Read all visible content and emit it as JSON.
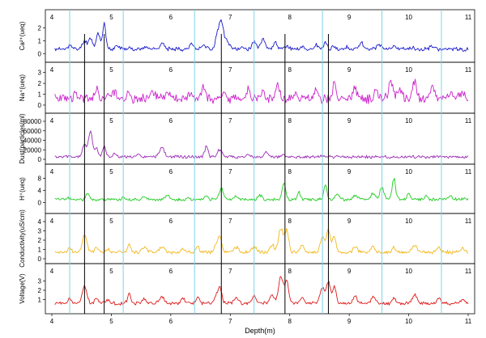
{
  "chart_data": [
    {
      "type": "line",
      "ylabel": "Ca²⁺(ueq)",
      "color": "#1a1acc",
      "ylim": [
        -0.3,
        2.8
      ],
      "yticks": [
        0,
        1,
        2
      ],
      "baseline": 0.35,
      "peaks": [
        [
          4.3,
          0.7
        ],
        [
          4.55,
          1.0
        ],
        [
          4.65,
          1.2
        ],
        [
          4.78,
          1.6
        ],
        [
          4.88,
          2.3
        ],
        [
          5.1,
          0.6
        ],
        [
          5.3,
          0.5
        ],
        [
          5.6,
          0.6
        ],
        [
          5.85,
          0.8
        ],
        [
          6.1,
          0.4
        ],
        [
          6.35,
          0.8
        ],
        [
          6.55,
          0.7
        ],
        [
          6.78,
          1.3
        ],
        [
          6.85,
          2.5
        ],
        [
          6.95,
          0.9
        ],
        [
          7.2,
          0.5
        ],
        [
          7.4,
          0.9
        ],
        [
          7.55,
          1.2
        ],
        [
          7.75,
          0.9
        ],
        [
          7.95,
          0.6
        ],
        [
          8.2,
          0.5
        ],
        [
          8.45,
          0.7
        ],
        [
          8.6,
          0.9
        ],
        [
          8.75,
          0.6
        ],
        [
          8.95,
          0.5
        ],
        [
          9.2,
          0.9
        ],
        [
          9.5,
          0.8
        ],
        [
          9.75,
          0.6
        ],
        [
          10.05,
          0.5
        ],
        [
          10.4,
          0.6
        ],
        [
          10.7,
          0.4
        ],
        [
          10.95,
          0.3
        ]
      ],
      "x": [
        4.05,
        11.0
      ],
      "seed": 11,
      "noise": 0.12
    },
    {
      "type": "line",
      "ylabel": "Na⁺(ueq)",
      "color": "#cc22cc",
      "ylim": [
        -0.3,
        3.2
      ],
      "yticks": [
        0,
        1,
        2,
        3
      ],
      "baseline": 0.6,
      "peaks": [
        [
          4.4,
          1.0
        ],
        [
          4.75,
          1.4
        ],
        [
          4.95,
          1.0
        ],
        [
          5.05,
          1.3
        ],
        [
          5.3,
          1.5
        ],
        [
          5.7,
          1.3
        ],
        [
          5.95,
          1.2
        ],
        [
          6.35,
          1.3
        ],
        [
          6.55,
          1.6
        ],
        [
          6.9,
          1.3
        ],
        [
          7.3,
          1.7
        ],
        [
          7.55,
          1.4
        ],
        [
          7.8,
          1.9
        ],
        [
          8.1,
          1.1
        ],
        [
          8.45,
          1.5
        ],
        [
          8.75,
          1.9
        ],
        [
          9.1,
          1.4
        ],
        [
          9.45,
          1.6
        ],
        [
          9.7,
          2.0
        ],
        [
          9.85,
          1.5
        ],
        [
          10.1,
          2.2
        ],
        [
          10.4,
          1.6
        ],
        [
          10.7,
          1.1
        ],
        [
          10.9,
          1.2
        ]
      ],
      "x": [
        4.05,
        11.0
      ],
      "seed": 23,
      "noise": 0.35
    },
    {
      "type": "line",
      "ylabel": "Dust(particles/ml)",
      "color": "#9b2bb5",
      "ylim": [
        0,
        80000
      ],
      "yticks": [
        0,
        20000,
        40000,
        60000,
        80000
      ],
      "baseline": 5000,
      "peaks": [
        [
          4.55,
          30000
        ],
        [
          4.65,
          58000
        ],
        [
          4.75,
          25000
        ],
        [
          4.88,
          28000
        ],
        [
          5.05,
          12000
        ],
        [
          5.45,
          9000
        ],
        [
          5.85,
          26000
        ],
        [
          6.1,
          6000
        ],
        [
          6.6,
          28000
        ],
        [
          6.82,
          20000
        ],
        [
          7.0,
          8000
        ],
        [
          7.3,
          9000
        ],
        [
          7.6,
          18000
        ],
        [
          7.9,
          10000
        ],
        [
          8.3,
          6000
        ],
        [
          8.55,
          8000
        ],
        [
          8.85,
          5000
        ],
        [
          9.3,
          5000
        ],
        [
          9.8,
          5000
        ],
        [
          10.3,
          4000
        ],
        [
          10.9,
          5000
        ]
      ],
      "x": [
        4.05,
        11.0
      ],
      "seed": 5,
      "noise": 2500
    },
    {
      "type": "line",
      "ylabel": "H⁺(ueq)",
      "color": "#22cc22",
      "ylim": [
        -2,
        10
      ],
      "yticks": [
        0,
        4,
        8
      ],
      "baseline": 1.0,
      "peaks": [
        [
          4.3,
          1.5
        ],
        [
          4.6,
          3.0
        ],
        [
          4.85,
          1.2
        ],
        [
          5.2,
          1.5
        ],
        [
          5.55,
          2.0
        ],
        [
          5.95,
          2.5
        ],
        [
          6.3,
          1.5
        ],
        [
          6.6,
          2.0
        ],
        [
          6.85,
          4.5
        ],
        [
          7.1,
          2.0
        ],
        [
          7.5,
          2.5
        ],
        [
          7.9,
          6.5
        ],
        [
          8.15,
          3.5
        ],
        [
          8.6,
          6.0
        ],
        [
          8.8,
          3.0
        ],
        [
          9.1,
          2.5
        ],
        [
          9.4,
          3.0
        ],
        [
          9.55,
          5.0
        ],
        [
          9.75,
          8.0
        ],
        [
          10.0,
          3.0
        ],
        [
          10.3,
          2.0
        ],
        [
          10.7,
          2.0
        ],
        [
          10.95,
          1.5
        ]
      ],
      "x": [
        4.05,
        11.0
      ],
      "seed": 37,
      "noise": 0.4
    },
    {
      "type": "line",
      "ylabel": "Conductivity(uS/cm)",
      "color": "#f2b81e",
      "ylim": [
        0,
        4
      ],
      "yticks": [
        0,
        1,
        2,
        3,
        4
      ],
      "baseline": 0.7,
      "peaks": [
        [
          4.3,
          1.2
        ],
        [
          4.55,
          2.6
        ],
        [
          4.75,
          1.3
        ],
        [
          4.95,
          1.0
        ],
        [
          5.3,
          1.5
        ],
        [
          5.55,
          1.2
        ],
        [
          5.85,
          1.3
        ],
        [
          6.2,
          1.1
        ],
        [
          6.45,
          1.3
        ],
        [
          6.75,
          1.2
        ],
        [
          6.82,
          2.3
        ],
        [
          7.1,
          1.2
        ],
        [
          7.4,
          1.3
        ],
        [
          7.7,
          1.5
        ],
        [
          7.85,
          3.3
        ],
        [
          7.95,
          3.0
        ],
        [
          8.2,
          1.4
        ],
        [
          8.55,
          2.3
        ],
        [
          8.65,
          3.0
        ],
        [
          8.75,
          2.5
        ],
        [
          9.1,
          1.3
        ],
        [
          9.4,
          1.3
        ],
        [
          9.75,
          1.2
        ],
        [
          10.1,
          1.5
        ],
        [
          10.5,
          1.2
        ],
        [
          10.9,
          1.1
        ]
      ],
      "x": [
        4.05,
        11.0
      ],
      "seed": 41,
      "noise": 0.15
    },
    {
      "type": "line",
      "ylabel": "Voltage(V)",
      "color": "#e01a1a",
      "ylim": [
        0,
        4
      ],
      "yticks": [
        1,
        2,
        3
      ],
      "baseline": 0.6,
      "peaks": [
        [
          4.3,
          1.2
        ],
        [
          4.55,
          2.6
        ],
        [
          4.75,
          1.2
        ],
        [
          4.95,
          1.0
        ],
        [
          5.3,
          1.6
        ],
        [
          5.55,
          1.1
        ],
        [
          5.85,
          1.3
        ],
        [
          6.2,
          1.2
        ],
        [
          6.45,
          1.3
        ],
        [
          6.75,
          1.2
        ],
        [
          6.82,
          2.3
        ],
        [
          7.1,
          1.2
        ],
        [
          7.4,
          1.3
        ],
        [
          7.7,
          1.5
        ],
        [
          7.85,
          3.4
        ],
        [
          7.95,
          2.9
        ],
        [
          8.2,
          1.3
        ],
        [
          8.55,
          2.3
        ],
        [
          8.65,
          2.9
        ],
        [
          8.75,
          2.4
        ],
        [
          9.1,
          1.3
        ],
        [
          9.4,
          1.3
        ],
        [
          9.75,
          1.2
        ],
        [
          10.1,
          1.6
        ],
        [
          10.5,
          1.2
        ],
        [
          10.9,
          1.1
        ]
      ],
      "x": [
        4.05,
        11.0
      ],
      "seed": 59,
      "noise": 0.15
    }
  ],
  "depth_labels": [
    "4",
    "5",
    "6",
    "7",
    "8",
    "9",
    "10",
    "11"
  ],
  "depth_values": [
    4,
    5,
    6,
    7,
    8,
    9,
    10,
    11
  ],
  "xlabel": "Depth(m)",
  "xlim": [
    4,
    11
  ],
  "cyan_markers": [
    4.3,
    5.2,
    6.4,
    7.4,
    8.55,
    9.55,
    10.55
  ],
  "black_markers": [
    4.55,
    4.88,
    6.85,
    7.92,
    8.65
  ],
  "cyan_color": "#7fd3e6"
}
